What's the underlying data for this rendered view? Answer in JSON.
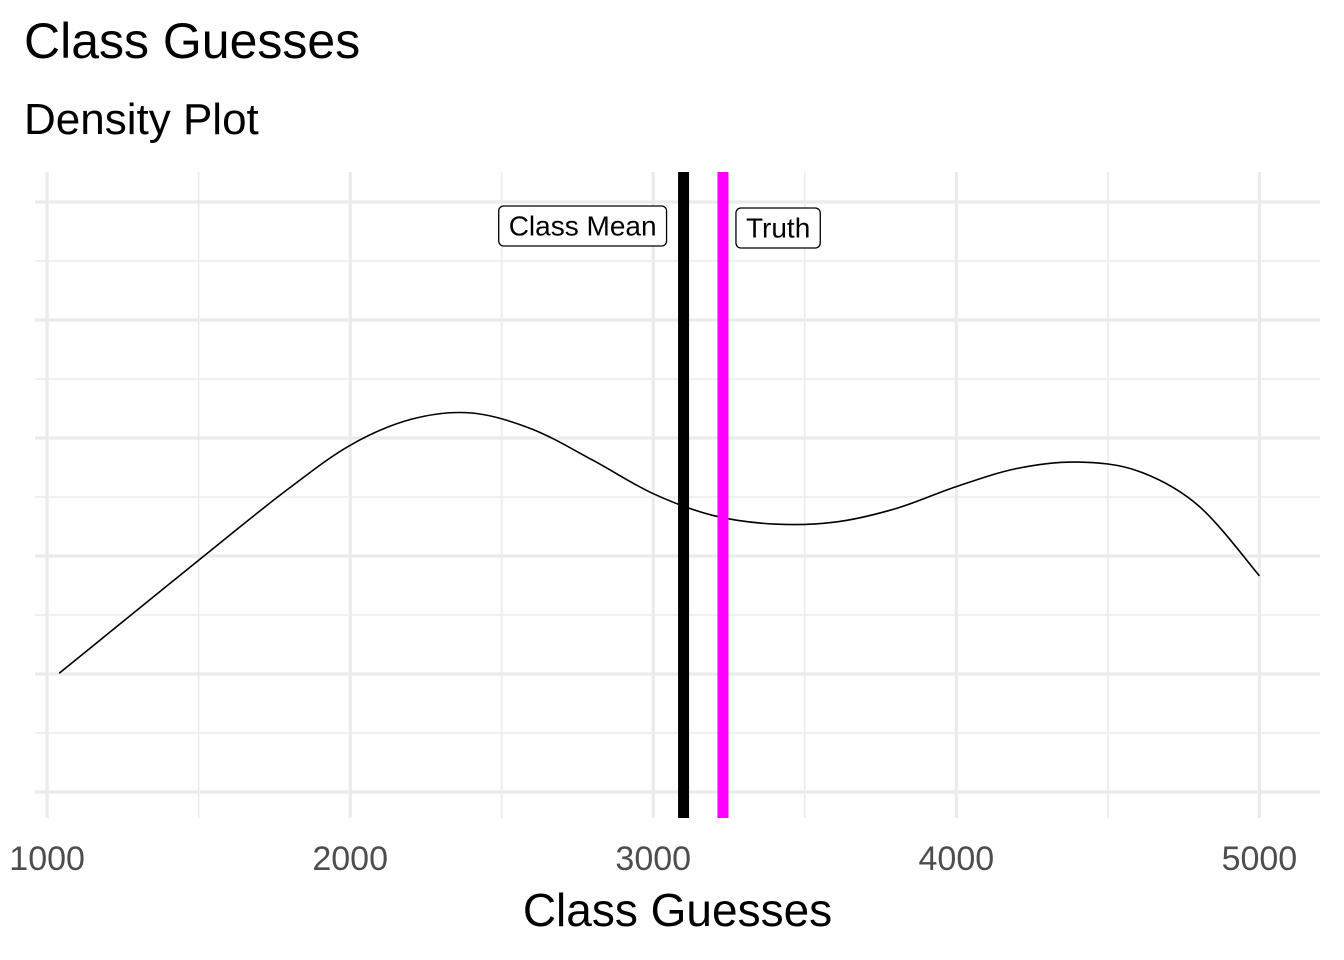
{
  "title": "Class Guesses",
  "subtitle": "Density Plot",
  "chart_data": {
    "type": "line",
    "title": "Class Guesses",
    "subtitle": "Density Plot",
    "xlabel": "Class Guesses",
    "ylabel": "",
    "xlim": [
      960,
      5200
    ],
    "ylim": [
      0,
      1
    ],
    "x_ticks": [
      1000,
      2000,
      3000,
      4000,
      5000
    ],
    "x_tick_labels": [
      "1000",
      "2000",
      "3000",
      "4000",
      "5000"
    ],
    "y_tick_labels": [],
    "grid": true,
    "series": [
      {
        "x": [
          1040,
          1200,
          1400,
          1600,
          1800,
          2000,
          2200,
          2400,
          2600,
          2800,
          3000,
          3200,
          3400,
          3600,
          3800,
          4000,
          4200,
          4400,
          4600,
          4800,
          5000
        ],
        "y": [
          0.224,
          0.285,
          0.361,
          0.437,
          0.511,
          0.577,
          0.617,
          0.627,
          0.602,
          0.554,
          0.502,
          0.468,
          0.455,
          0.458,
          0.479,
          0.513,
          0.541,
          0.551,
          0.537,
          0.483,
          0.375
        ]
      }
    ],
    "reference_lines": [
      {
        "label": "Class Mean",
        "x": 3100,
        "color": "#000000",
        "label_side": "left"
      },
      {
        "label": "Truth",
        "x": 3230,
        "color": "#ff00ff",
        "label_side": "right"
      }
    ],
    "colors": {
      "density_line": "#000000",
      "grid": "#ebebeb",
      "mean_line": "#000000",
      "truth_line": "#ff00ff"
    }
  }
}
